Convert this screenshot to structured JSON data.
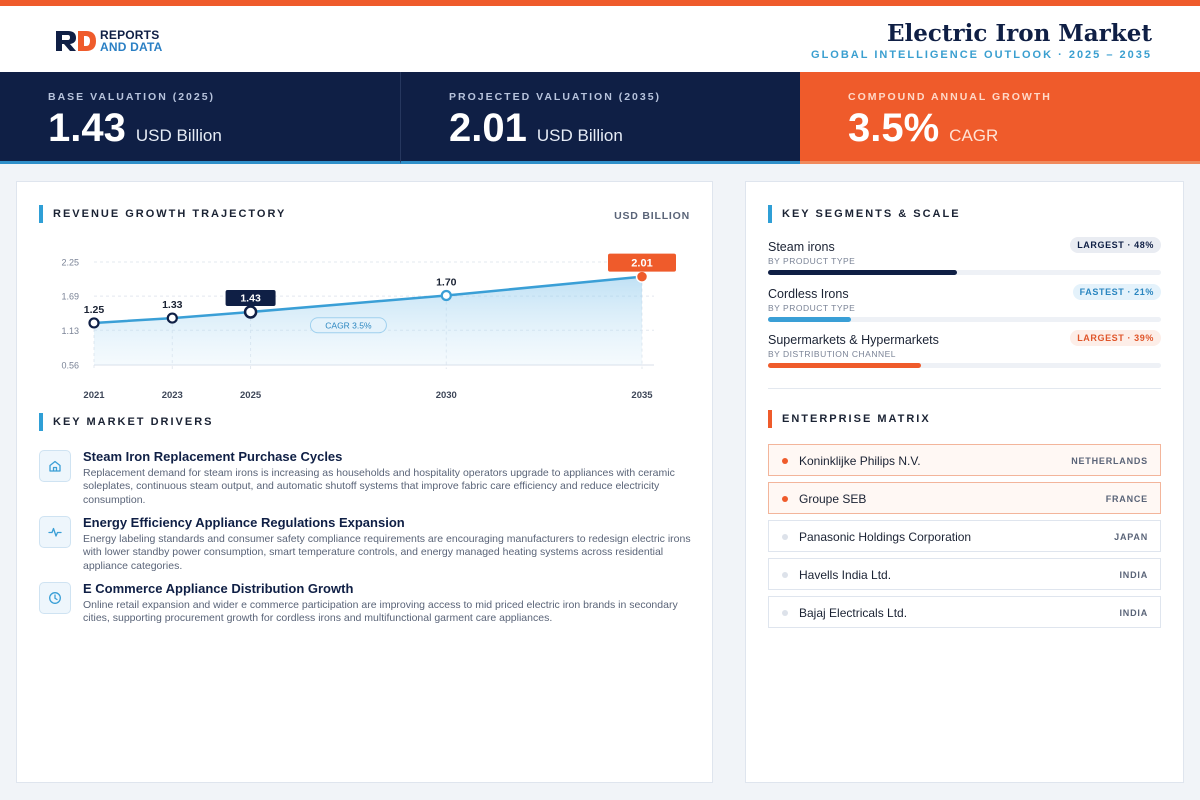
{
  "header": {
    "logo_line1": "REPORTS",
    "logo_line2": "AND DATA",
    "title": "Electric Iron Market",
    "subtitle": "GLOBAL INTELLIGENCE OUTLOOK  ·  2025 – 2035"
  },
  "kpis": [
    {
      "label": "BASE VALUATION (2025)",
      "value": "1.43",
      "unit": "USD Billion"
    },
    {
      "label": "PROJECTED VALUATION (2035)",
      "value": "2.01",
      "unit": "USD Billion"
    },
    {
      "label": "COMPOUND ANNUAL GROWTH",
      "value": "3.5%",
      "unit": "CAGR"
    }
  ],
  "revenue_section": {
    "title": "REVENUE GROWTH TRAJECTORY",
    "unit": "USD BILLION"
  },
  "chart_data": {
    "type": "area",
    "title": "REVENUE GROWTH TRAJECTORY",
    "ylabel": "USD BILLION",
    "categories": [
      "2021",
      "2023",
      "2025",
      "2030",
      "2035"
    ],
    "values": [
      1.25,
      1.33,
      1.43,
      1.7,
      2.01
    ],
    "value_labels": [
      "1.25",
      "1.33",
      "1.43",
      "1.70",
      "2.01"
    ],
    "y_ticks": [
      "2.25",
      "1.69",
      "1.13",
      "0.56"
    ],
    "y_tick_values": [
      2.25,
      1.69,
      1.13,
      0.56
    ],
    "ylim": [
      0.56,
      2.25
    ],
    "annotation": "CAGR 3.5%",
    "grid": true,
    "colors": {
      "line": "#3a9fd6",
      "dark": "#0f1f45",
      "accent": "#ef5b2b"
    }
  },
  "drivers_section": {
    "title": "KEY MARKET DRIVERS"
  },
  "drivers": [
    {
      "icon": "home-icon",
      "title": "Steam Iron Replacement Purchase Cycles",
      "desc": "Replacement demand for steam irons is increasing as households and hospitality operators upgrade to appliances with ceramic soleplates, continuous steam output, and automatic shutoff systems that improve fabric care efficiency and reduce electricity consumption."
    },
    {
      "icon": "pulse-icon",
      "title": "Energy Efficiency Appliance Regulations Expansion",
      "desc": "Energy labeling standards and consumer safety compliance requirements are encouraging manufacturers to redesign electric irons with lower standby power consumption, smart temperature controls, and energy managed heating systems across residential appliance categories."
    },
    {
      "icon": "clock-icon",
      "title": "E Commerce Appliance Distribution Growth",
      "desc": "Online retail expansion and wider e commerce participation are improving access to mid priced electric iron brands in secondary cities, supporting procurement growth for cordless irons and multifunctional garment care appliances."
    }
  ],
  "segments_section": {
    "title": "KEY SEGMENTS & SCALE"
  },
  "segments": [
    {
      "name": "Steam irons",
      "sub": "BY PRODUCT TYPE",
      "badge": "LARGEST · 48%",
      "share": 48,
      "color": "#0f1f45",
      "badge_bg": "#e9ecf2",
      "badge_fg": "#0f1f45"
    },
    {
      "name": "Cordless Irons",
      "sub": "BY PRODUCT TYPE",
      "badge": "FASTEST · 21%",
      "share": 21,
      "color": "#3a9fd6",
      "badge_bg": "#e4f2fb",
      "badge_fg": "#2a86c0"
    },
    {
      "name": "Supermarkets & Hypermarkets",
      "sub": "BY DISTRIBUTION CHANNEL",
      "badge": "LARGEST · 39%",
      "share": 39,
      "color": "#ef5b2b",
      "badge_bg": "#fdeee8",
      "badge_fg": "#e0562b"
    }
  ],
  "enterprise_section": {
    "title": "ENTERPRISE MATRIX"
  },
  "enterprises": [
    {
      "name": "Koninklijke Philips N.V.",
      "country": "NETHERLANDS",
      "highlight": true
    },
    {
      "name": "Groupe SEB",
      "country": "FRANCE",
      "highlight": true
    },
    {
      "name": "Panasonic Holdings Corporation",
      "country": "JAPAN",
      "highlight": false
    },
    {
      "name": "Havells India Ltd.",
      "country": "INDIA",
      "highlight": false
    },
    {
      "name": "Bajaj Electricals Ltd.",
      "country": "INDIA",
      "highlight": false
    }
  ]
}
